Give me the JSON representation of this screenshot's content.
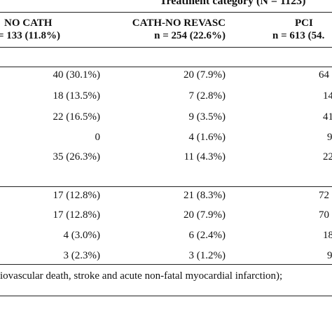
{
  "header": {
    "treatment_category": "Treatment category (N = 1123)"
  },
  "columns": [
    {
      "name": "NO CATH",
      "n": "= 133 (11.8%)"
    },
    {
      "name": "CATH-NO REVASC",
      "n": "n = 254 (22.6%)"
    },
    {
      "name": "PCI",
      "n": "n = 613 (54."
    }
  ],
  "group1": [
    {
      "c1": "40 (30.1%)",
      "c2": "20 (7.9%)",
      "c3": "64"
    },
    {
      "c1": "18 (13.5%)",
      "c2": "7 (2.8%)",
      "c3": "14"
    },
    {
      "c1": "22 (16.5%)",
      "c2": "9 (3.5%)",
      "c3": "41"
    },
    {
      "c1": "0",
      "c2": "4 (1.6%)",
      "c3": "9"
    },
    {
      "c1": "35 (26.3%)",
      "c2": "11 (4.3%)",
      "c3": "22"
    }
  ],
  "group2": [
    {
      "c1": "17 (12.8%)",
      "c2": "21 (8.3%)",
      "c3": "72"
    },
    {
      "c1": "17 (12.8%)",
      "c2": "20 (7.9%)",
      "c3": "70"
    },
    {
      "c1": "4 (3.0%)",
      "c2": "6 (2.4%)",
      "c3": "18"
    },
    {
      "c1": "3 (2.3%)",
      "c2": "3 (1.2%)",
      "c3": "9"
    }
  ],
  "footnote": "iovascular death, stroke and acute non-fatal myocardial infarction);"
}
